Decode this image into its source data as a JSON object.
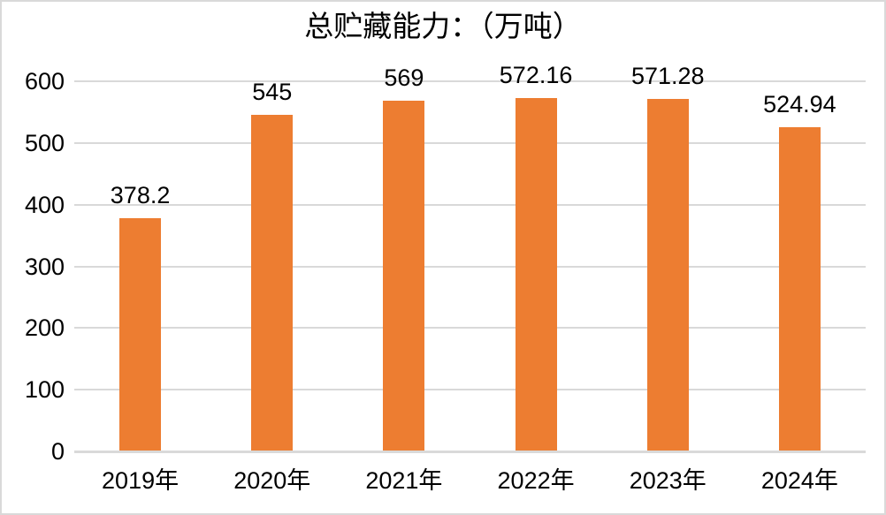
{
  "chart_data": {
    "type": "bar",
    "title": "总贮藏能力：（万吨）",
    "categories": [
      "2019年",
      "2020年",
      "2021年",
      "2022年",
      "2023年",
      "2024年"
    ],
    "values": [
      378.2,
      545,
      569,
      572.16,
      571.28,
      524.94
    ],
    "value_labels": [
      "378.2",
      "545",
      "569",
      "572.16",
      "571.28",
      "524.94"
    ],
    "xlabel": "",
    "ylabel": "",
    "ylim": [
      0,
      600
    ],
    "y_ticks": [
      0,
      100,
      200,
      300,
      400,
      500,
      600
    ],
    "grid": true,
    "legend_position": "none",
    "bar_color": "#ED7D31",
    "gridline_color": "#D9D9D9",
    "axis_line_color": "#D9D9D9",
    "text_color": "#000000",
    "background_color": "#FFFFFF",
    "border_color": "#D9D9D9"
  }
}
